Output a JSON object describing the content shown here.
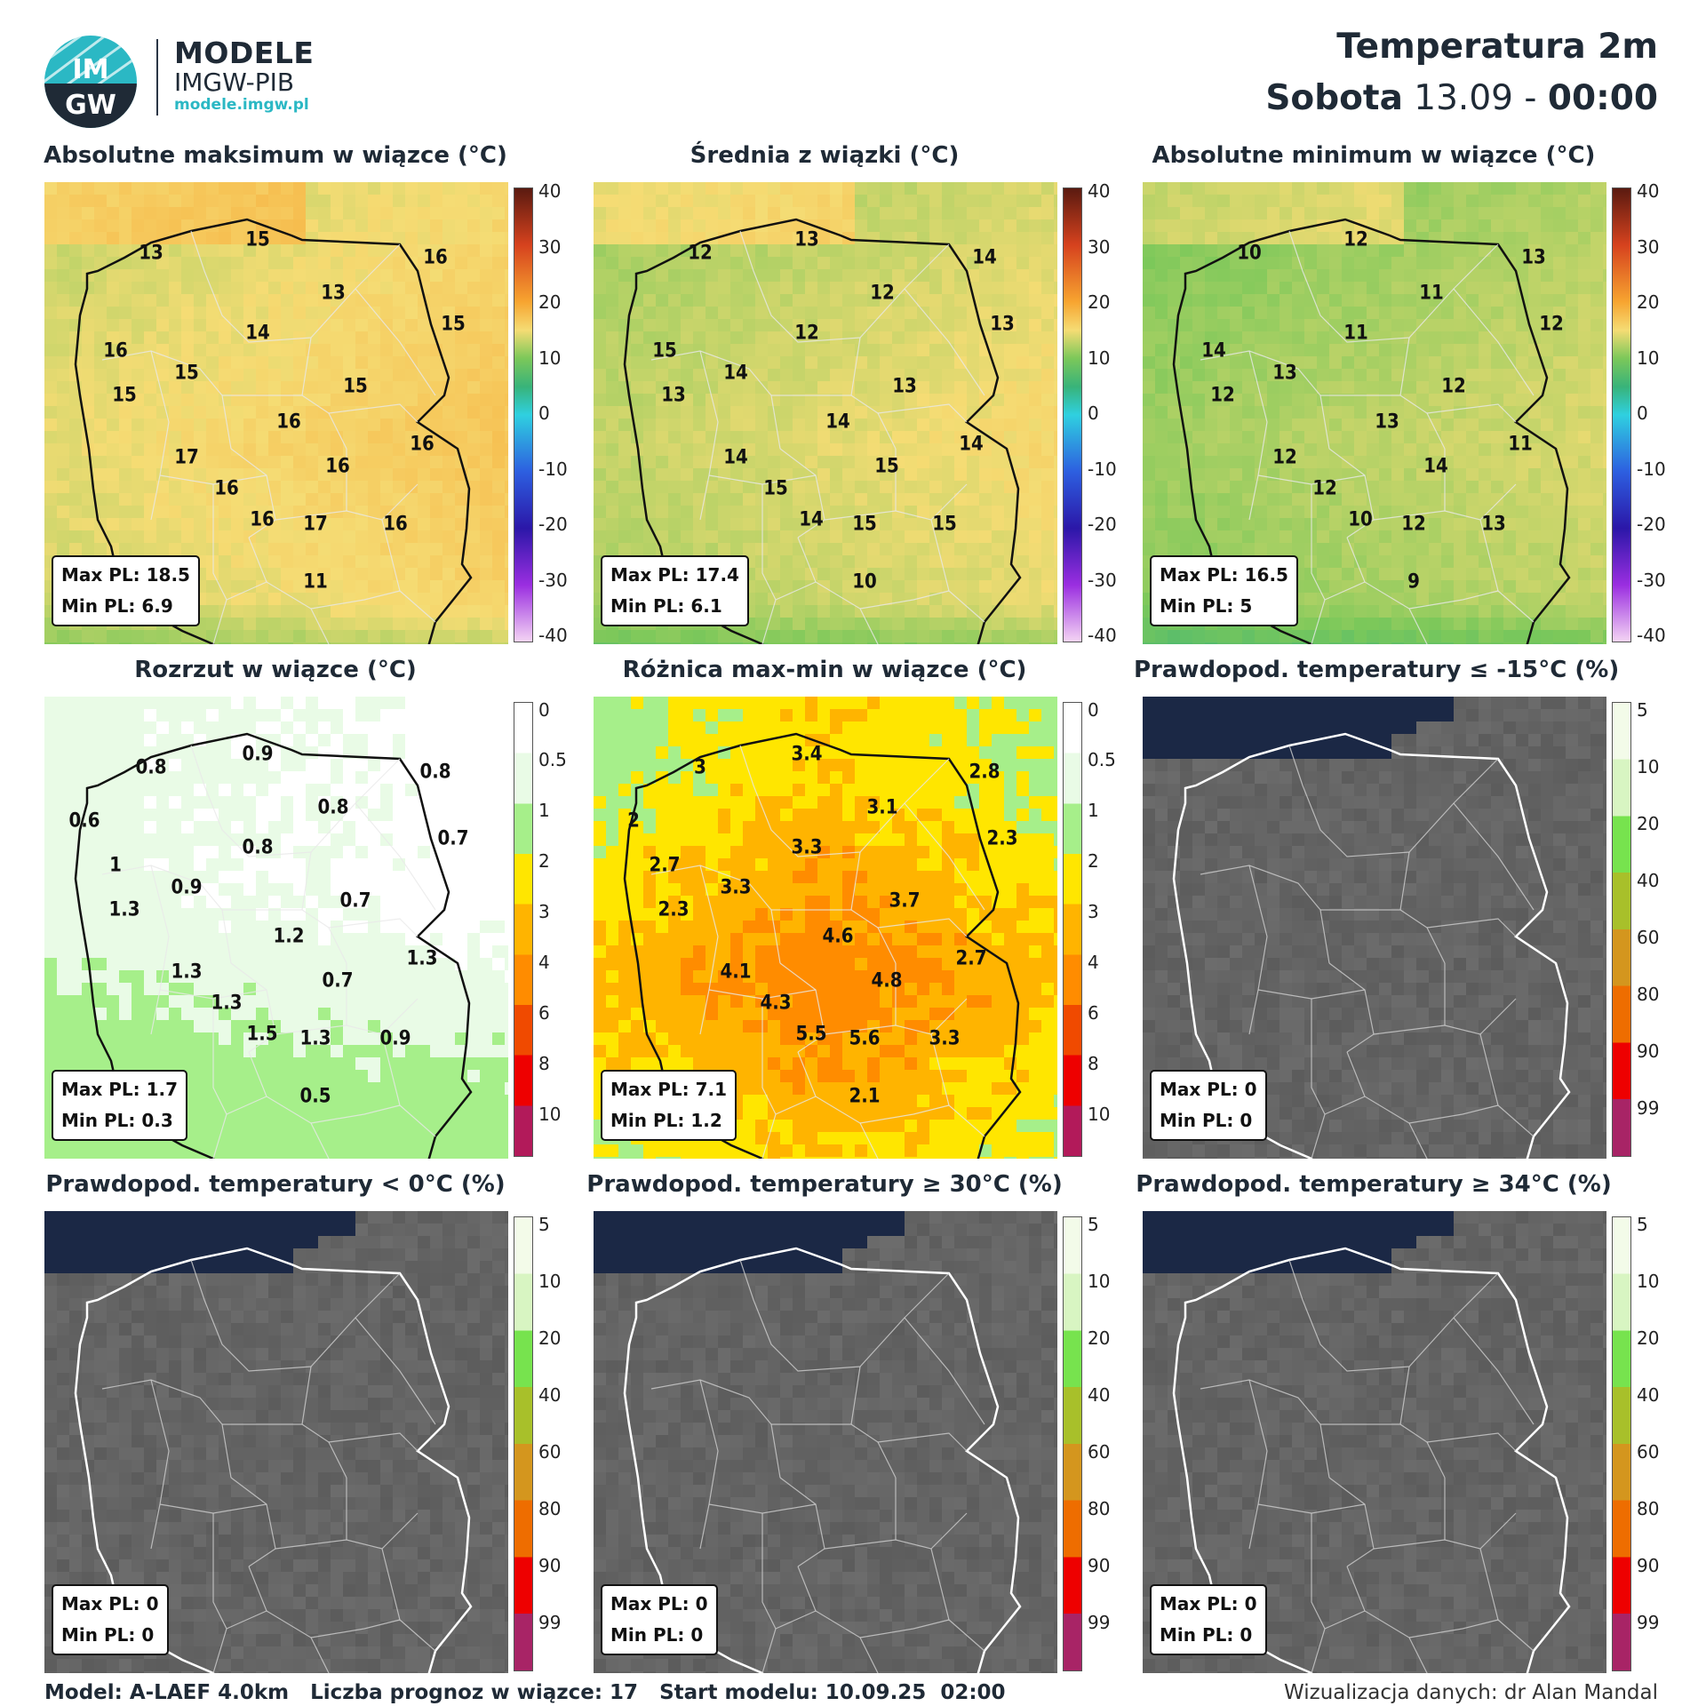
{
  "brand": {
    "name": "MODELE",
    "sub": "IMGW-PIB",
    "url": "modele.imgw.pl",
    "logo_top": "IM",
    "logo_bottom": "GW"
  },
  "header": {
    "title": "Temperatura 2m",
    "day": "Sobota",
    "date": "13.09",
    "sep": "-",
    "time": "00:00"
  },
  "colorbars": {
    "temperature": {
      "ticks": [
        "40",
        "30",
        "20",
        "10",
        "0",
        "-10",
        "-20",
        "-30",
        "-40"
      ]
    },
    "spread": {
      "ticks": [
        "0",
        "0.5",
        "1",
        "2",
        "3",
        "4",
        "6",
        "8",
        "10"
      ]
    },
    "probability": {
      "ticks": [
        "5",
        "10",
        "20",
        "40",
        "60",
        "80",
        "90",
        "99"
      ]
    }
  },
  "panels": [
    {
      "title": "Absolutne maksimum w wiązce (°C)",
      "scheme": "temperature",
      "max": "Max PL: 18.5",
      "min": "Min PL: 6.9",
      "labels": [
        "13",
        "15",
        "16",
        "13",
        "15",
        "16",
        "14",
        "15",
        "15",
        "15",
        "16",
        "17",
        "16",
        "16",
        "16",
        "16",
        "17",
        "16",
        "11"
      ]
    },
    {
      "title": "Średnia z wiązki (°C)",
      "scheme": "temperature",
      "max": "Max PL: 17.4",
      "min": "Min PL: 6.1",
      "labels": [
        "12",
        "13",
        "14",
        "12",
        "13",
        "15",
        "12",
        "14",
        "13",
        "13",
        "14",
        "14",
        "14",
        "15",
        "15",
        "14",
        "15",
        "15",
        "10"
      ]
    },
    {
      "title": "Absolutne minimum w wiązce (°C)",
      "scheme": "temperature",
      "max": "Max PL: 16.5",
      "min": "Min PL: 5",
      "labels": [
        "10",
        "12",
        "13",
        "11",
        "12",
        "14",
        "11",
        "13",
        "12",
        "12",
        "13",
        "12",
        "11",
        "14",
        "12",
        "10",
        "12",
        "13",
        "9"
      ]
    },
    {
      "title": "Rozrzut w wiązce (°C)",
      "scheme": "spread",
      "max": "Max PL: 1.7",
      "min": "Min PL: 0.3",
      "labels": [
        "0.8",
        "0.9",
        "0.8",
        "0.6",
        "0.8",
        "0.7",
        "1",
        "0.8",
        "0.9",
        "1.3",
        "0.7",
        "1.2",
        "1.3",
        "1.3",
        "0.7",
        "1.3",
        "1.5",
        "1.3",
        "0.9",
        "0.5"
      ]
    },
    {
      "title": "Różnica max-min w wiązce (°C)",
      "scheme": "spread",
      "max": "Max PL: 7.1",
      "min": "Min PL: 1.2",
      "labels": [
        "3",
        "3.4",
        "2.8",
        "2",
        "3.1",
        "2.3",
        "2.7",
        "3.3",
        "3.3",
        "2.3",
        "3.7",
        "4.6",
        "4.1",
        "2.7",
        "4.8",
        "4.3",
        "5.5",
        "5.6",
        "3.3",
        "2.1"
      ]
    },
    {
      "title": "Prawdopod. temperatury ≤ -15°C (%)",
      "scheme": "probability",
      "max": "Max PL: 0",
      "min": "Min PL: 0",
      "labels": []
    },
    {
      "title": "Prawdopod. temperatury < 0°C (%)",
      "scheme": "probability",
      "max": "Max PL: 0",
      "min": "Min PL: 0",
      "labels": []
    },
    {
      "title": "Prawdopod. temperatury ≥ 30°C (%)",
      "scheme": "probability",
      "max": "Max PL: 0",
      "min": "Min PL: 0",
      "labels": []
    },
    {
      "title": "Prawdopod. temperatury ≥ 34°C (%)",
      "scheme": "probability",
      "max": "Max PL: 0",
      "min": "Min PL: 0",
      "labels": []
    }
  ],
  "footer": {
    "model": "Model: A-LAEF 4.0km",
    "members": "Liczba prognoz w wiązce: 17",
    "start": "Start modelu: 10.09.25  02:00",
    "credit": "Wizualizacja danych: dr Alan Mandal"
  }
}
